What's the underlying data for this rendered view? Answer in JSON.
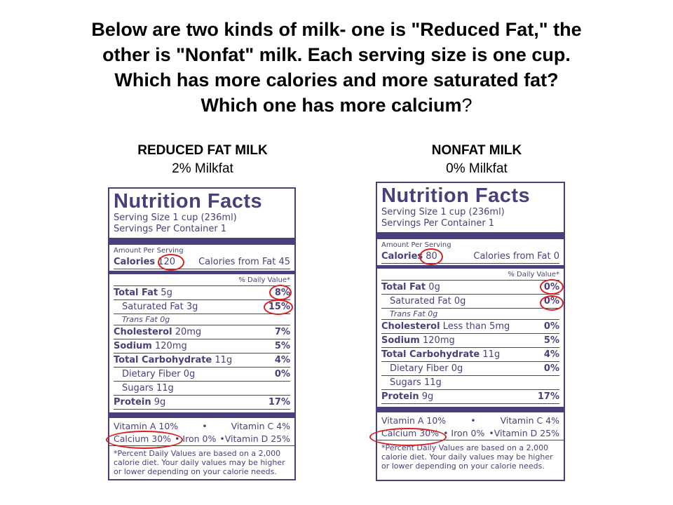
{
  "question": {
    "line1": "Below are two kinds of milk- one is \"Reduced Fat,\" the",
    "line2": "other is \"Nonfat\" milk. Each serving size is one cup.",
    "line3": "Which has more calories and more saturated fat?",
    "line4_main": "Which one has more calcium",
    "line4_end": "?"
  },
  "labels": [
    {
      "heading": "REDUCED FAT MILK",
      "subheading": "2% Milkfat",
      "title": "Nutrition Facts",
      "serving_size": "Serving Size 1 cup (236ml)",
      "servings_per_container": "Servings Per Container 1",
      "amount_per_serving": "Amount Per Serving",
      "calories_label": "Calories",
      "calories_value": "120",
      "calories_from_fat": "Calories from Fat 45",
      "daily_value_head": "% Daily Value*",
      "total_fat_label": "Total Fat",
      "total_fat_value": "5g",
      "total_fat_pct": "8%",
      "sat_fat_label": "Saturated Fat 3g",
      "sat_fat_pct": "15%",
      "trans_fat_label": "Trans Fat 0g",
      "cholesterol_label": "Cholesterol",
      "cholesterol_value": "20mg",
      "cholesterol_pct": "7%",
      "sodium_label": "Sodium",
      "sodium_value": "120mg",
      "sodium_pct": "5%",
      "carb_label": "Total Carbohydrate",
      "carb_value": "11g",
      "carb_pct": "4%",
      "fiber_label": "Dietary Fiber 0g",
      "fiber_pct": "0%",
      "sugars_label": "Sugars 11g",
      "protein_label": "Protein",
      "protein_value": "9g",
      "protein_pct": "17%",
      "vitamin_a": "Vitamin A 10%",
      "bullet": "•",
      "vitamin_c": "Vitamin C 4%",
      "calcium": "Calcium 30%",
      "iron": "• Iron 0%",
      "vitamin_d": "•Vitamin D 25%",
      "footnote": "*Percent Daily Values are based on a 2,000 calorie diet.  Your daily values may be higher or lower depending on your calorie needs."
    },
    {
      "heading": "NONFAT MILK",
      "subheading": "0% Milkfat",
      "title": "Nutrition Facts",
      "serving_size": "Serving Size 1 cup (236ml)",
      "servings_per_container": "Servings Per Container 1",
      "amount_per_serving": "Amount Per Serving",
      "calories_label": "Calories",
      "calories_value": "80",
      "calories_from_fat": "Calories from Fat 0",
      "daily_value_head": "% Daily Value*",
      "total_fat_label": "Total Fat",
      "total_fat_value": "0g",
      "total_fat_pct": "0%",
      "sat_fat_label": "Saturated Fat 0g",
      "sat_fat_pct": "0%",
      "trans_fat_label": "Trans Fat 0g",
      "cholesterol_label": "Cholesterol",
      "cholesterol_value": "Less than 5mg",
      "cholesterol_pct": "0%",
      "sodium_label": "Sodium",
      "sodium_value": "120mg",
      "sodium_pct": "5%",
      "carb_label": "Total Carbohydrate",
      "carb_value": "11g",
      "carb_pct": "4%",
      "fiber_label": "Dietary Fiber 0g",
      "fiber_pct": "0%",
      "sugars_label": "Sugars 11g",
      "protein_label": "Protein",
      "protein_value": "9g",
      "protein_pct": "17%",
      "vitamin_a": "Vitamin A 10%",
      "bullet": "•",
      "vitamin_c": "Vitamin C 4%",
      "calcium": "Calcium 30%",
      "iron": "• Iron 0%",
      "vitamin_d": "•Vitamin D 25%",
      "footnote": "*Percent Daily Values are based on a 2,000 calorie diet.  Your daily values may be higher or lower depending on your calorie needs."
    }
  ],
  "colors": {
    "label_ink": "#4a3f7a",
    "highlight_circle": "#d82020"
  }
}
